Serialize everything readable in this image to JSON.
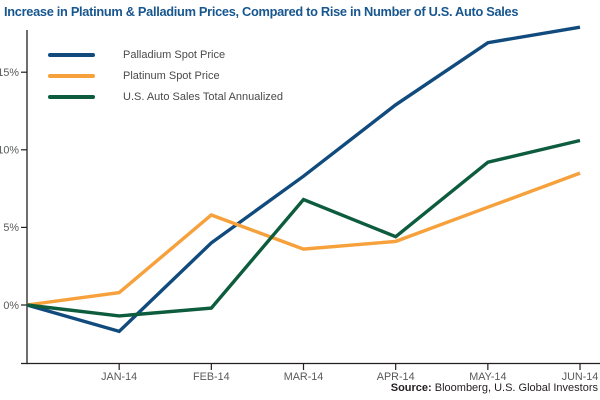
{
  "title": "Increase in Platinum & Palladium Prices, Compared to Rise in Number of U.S. Auto Sales",
  "colors": {
    "title_blue": "#17568F",
    "palladium_blue": "#114B7E",
    "platinum_orange": "#F6A13B",
    "auto_sales_green": "#0E5C3E",
    "axis_black": "#231F20",
    "tick_gray": "#58595B"
  },
  "source": {
    "label": "Source:",
    "text": " Bloomberg, U.S. Global Investors"
  },
  "chart_data": {
    "type": "line",
    "title": "Increase in Platinum & Palladium Prices, Compared to Rise in Number of U.S. Auto Sales",
    "unit": "percent change",
    "categories": [
      "",
      "JAN-14",
      "FEB-14",
      "MAR-14",
      "APR-14",
      "MAY-14",
      "JUN-14"
    ],
    "series": [
      {
        "name": "Palladium Spot Price",
        "color": "#114B7E",
        "values": [
          0,
          -1.7,
          4.0,
          8.3,
          12.9,
          16.9,
          17.9
        ]
      },
      {
        "name": "Platinum Spot Price",
        "color": "#F6A13B",
        "values": [
          0,
          0.8,
          5.8,
          3.6,
          4.1,
          6.3,
          8.5
        ]
      },
      {
        "name": "U.S. Auto Sales Total Annualized",
        "color": "#0E5C3E",
        "values": [
          0,
          -0.7,
          -0.2,
          6.8,
          4.4,
          9.2,
          10.6
        ]
      }
    ],
    "y_ticks": [
      0,
      5,
      10,
      15
    ],
    "y_tick_labels": [
      "0%",
      "5%",
      "10%",
      "15%"
    ],
    "ylim": [
      -3.7,
      17.8
    ],
    "grid": false,
    "legend_position": "top-left"
  }
}
